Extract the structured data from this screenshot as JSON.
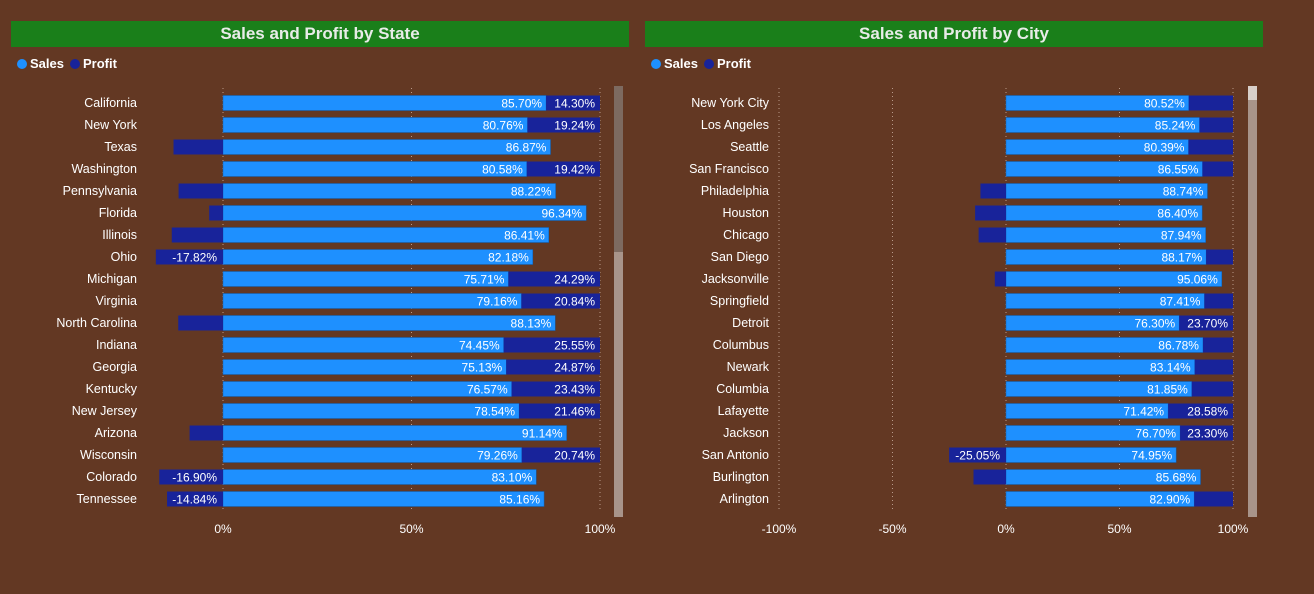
{
  "colors": {
    "sales": "#1e90ff",
    "profit": "#18239a",
    "background": "#633823",
    "title_bar": "#1a7f1a",
    "grid": "#b89a8a",
    "text": "#ffffff"
  },
  "charts": [
    {
      "title": "Sales and Profit by State",
      "legend": [
        {
          "label": "Sales",
          "color": "#1e90ff"
        },
        {
          "label": "Profit",
          "color": "#18239a"
        }
      ],
      "x_ticks": [
        "0%",
        "50%",
        "100%"
      ]
    },
    {
      "title": "Sales and Profit by City",
      "legend": [
        {
          "label": "Sales",
          "color": "#1e90ff"
        },
        {
          "label": "Profit",
          "color": "#18239a"
        }
      ],
      "x_ticks": [
        "-100%",
        "-50%",
        "0%",
        "50%",
        "100%"
      ]
    }
  ],
  "chart_data": [
    {
      "type": "bar",
      "orientation": "horizontal",
      "stacked": true,
      "title": "Sales and Profit by State",
      "xlim": [
        -18,
        100
      ],
      "grid": true,
      "legend_position": "top-left",
      "categories": [
        "California",
        "New York",
        "Texas",
        "Washington",
        "Pennsylvania",
        "Florida",
        "Illinois",
        "Ohio",
        "Michigan",
        "Virginia",
        "North Carolina",
        "Indiana",
        "Georgia",
        "Kentucky",
        "New Jersey",
        "Arizona",
        "Wisconsin",
        "Colorado",
        "Tennessee"
      ],
      "series": [
        {
          "name": "Sales",
          "values": [
            85.7,
            80.76,
            86.87,
            80.58,
            88.22,
            96.34,
            86.41,
            82.18,
            75.71,
            79.16,
            88.13,
            74.45,
            75.13,
            76.57,
            78.54,
            91.14,
            79.26,
            83.1,
            85.16
          ]
        },
        {
          "name": "Profit",
          "values": [
            14.3,
            19.24,
            -13.13,
            19.42,
            -11.78,
            -3.66,
            -13.59,
            -17.82,
            24.29,
            20.84,
            -11.87,
            25.55,
            24.87,
            23.43,
            21.46,
            -8.86,
            20.74,
            -16.9,
            -14.84
          ]
        }
      ],
      "sales_labels": [
        "85.70%",
        "80.76%",
        "86.87%",
        "80.58%",
        "88.22%",
        "96.34%",
        "86.41%",
        "82.18%",
        "75.71%",
        "79.16%",
        "88.13%",
        "74.45%",
        "75.13%",
        "76.57%",
        "78.54%",
        "91.14%",
        "79.26%",
        "83.10%",
        "85.16%"
      ],
      "profit_labels": [
        "14.30%",
        "19.24%",
        "",
        "19.42%",
        "",
        "",
        "",
        "-17.82%",
        "24.29%",
        "20.84%",
        "",
        "25.55%",
        "24.87%",
        "23.43%",
        "21.46%",
        "",
        "20.74%",
        "-16.90%",
        "-14.84%"
      ]
    },
    {
      "type": "bar",
      "orientation": "horizontal",
      "stacked": true,
      "title": "Sales and Profit by City",
      "xlim": [
        -100,
        100
      ],
      "grid": true,
      "legend_position": "top-left",
      "categories": [
        "New York City",
        "Los Angeles",
        "Seattle",
        "San Francisco",
        "Philadelphia",
        "Houston",
        "Chicago",
        "San Diego",
        "Jacksonville",
        "Springfield",
        "Detroit",
        "Columbus",
        "Newark",
        "Columbia",
        "Lafayette",
        "Jackson",
        "San Antonio",
        "Burlington",
        "Arlington"
      ],
      "series": [
        {
          "name": "Sales",
          "values": [
            80.52,
            85.24,
            80.39,
            86.55,
            88.74,
            86.4,
            87.94,
            88.17,
            95.06,
            87.41,
            76.3,
            86.78,
            83.14,
            81.85,
            71.42,
            76.7,
            74.95,
            85.68,
            82.9
          ]
        },
        {
          "name": "Profit",
          "values": [
            19.48,
            14.76,
            19.61,
            13.45,
            -11.26,
            -13.6,
            -12.06,
            11.83,
            -4.94,
            12.59,
            23.7,
            13.22,
            16.86,
            18.15,
            28.58,
            23.3,
            -25.05,
            -14.32,
            17.1
          ]
        }
      ],
      "sales_labels": [
        "80.52%",
        "85.24%",
        "80.39%",
        "86.55%",
        "88.74%",
        "86.40%",
        "87.94%",
        "88.17%",
        "95.06%",
        "87.41%",
        "76.30%",
        "86.78%",
        "83.14%",
        "81.85%",
        "71.42%",
        "76.70%",
        "74.95%",
        "85.68%",
        "82.90%"
      ],
      "profit_labels": [
        "",
        "",
        "",
        "",
        "",
        "",
        "",
        "",
        "",
        "",
        "23.70%",
        "",
        "",
        "",
        "28.58%",
        "23.30%",
        "-25.05%",
        "",
        ""
      ]
    }
  ]
}
